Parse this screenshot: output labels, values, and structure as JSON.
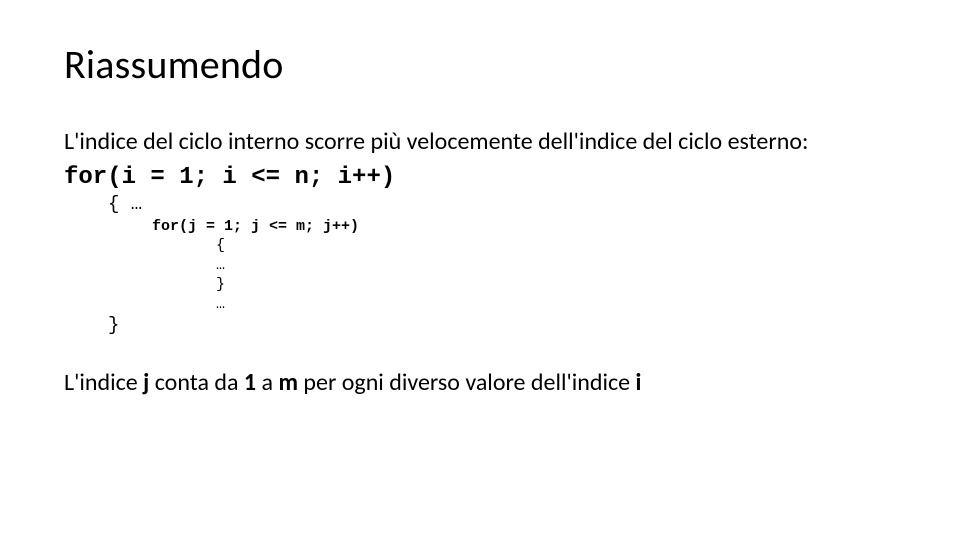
{
  "title": "Riassumendo",
  "intro": "L'indice del ciclo interno scorre più velocemente dell'indice del ciclo esterno:",
  "code": {
    "outer_for": "for(i = 1; i <= n; i++)",
    "open_brace": "{ …",
    "inner_for": "for(j = 1; j <= m; j++)",
    "inner_open": "{",
    "inner_body": "…",
    "inner_close": "}",
    "after_inner": "…",
    "close_brace": "}"
  },
  "closing": {
    "t1": "L'indice ",
    "j": "j",
    "t2": " conta da ",
    "one": "1",
    "t3": " a ",
    "m": "m",
    "t4": " per ogni diverso valore dell'indice ",
    "i": "i"
  },
  "style": {
    "title_fontsize": 40,
    "body_fontsize": 24,
    "code_main_fontsize": 24,
    "code_inner_fontsize": 15,
    "code_brace_fontsize": 19,
    "font_code": "Courier New",
    "font_body": "Calibri",
    "text_color": "#000000",
    "background": "#ffffff"
  }
}
